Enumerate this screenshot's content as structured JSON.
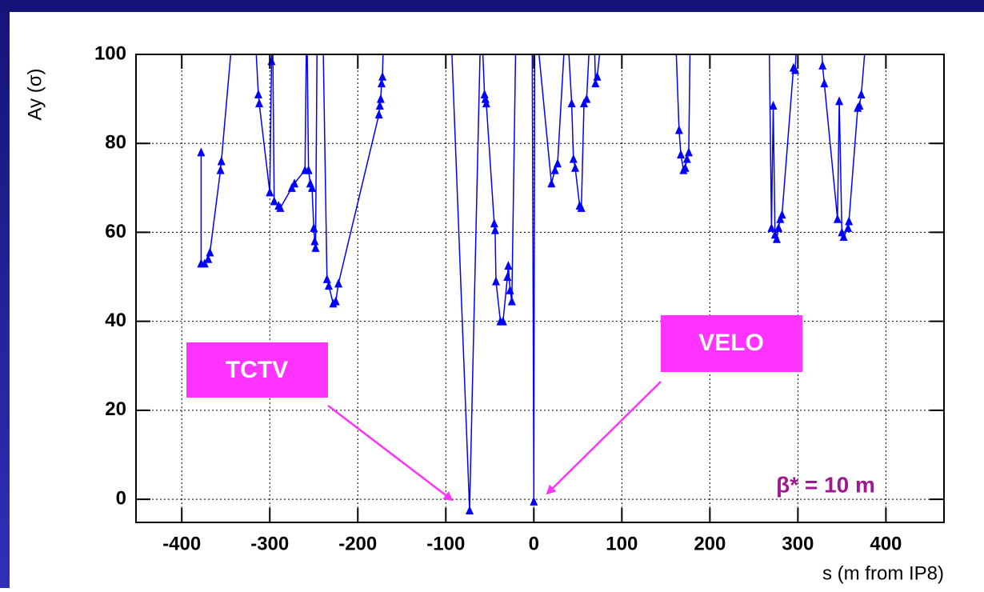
{
  "chart_data": {
    "type": "line",
    "y_label": "Ay (σ)",
    "x_label": "s (m from IP8)",
    "annotations": [
      "TCTV",
      "VELO",
      "β* = 10 m"
    ],
    "color": "#0000ff",
    "marker": "triangle",
    "grid": true,
    "xlim": [
      -452,
      466
    ],
    "ylim": [
      -5.2,
      100
    ],
    "xticks": [
      -400,
      -300,
      -200,
      -100,
      0,
      100,
      200,
      300,
      400
    ],
    "yticks": [
      0,
      20,
      40,
      60,
      80,
      100
    ],
    "x": [
      -378,
      -378,
      -374,
      -370,
      -368,
      -356,
      -355,
      -340,
      -318,
      -313,
      -312,
      -300,
      -298,
      -297,
      -295,
      -290,
      -288,
      -275,
      -272,
      -260,
      -258,
      -256,
      -254,
      -252,
      -250,
      -249,
      -248,
      -246,
      -240,
      -235,
      -233,
      -228,
      -225,
      -222,
      -176,
      -175,
      -174,
      -173,
      -172,
      -170,
      -95,
      -73,
      -60,
      -56,
      -55,
      -54,
      -45,
      -44,
      -43,
      -38,
      -35,
      -30,
      -29,
      -27,
      -25,
      -20,
      -2,
      0,
      1,
      20,
      24,
      27,
      37,
      43,
      45,
      47,
      52,
      54,
      57,
      60,
      65,
      68,
      70,
      72,
      80,
      160,
      165,
      167,
      170,
      172,
      174,
      176,
      178,
      267,
      270,
      272,
      274,
      276,
      278,
      280,
      282,
      295,
      297,
      300,
      325,
      328,
      330,
      345,
      347,
      350,
      352,
      357,
      358,
      368,
      370,
      372,
      380
    ],
    "values": [
      78,
      53,
      53,
      54,
      55.5,
      74,
      76,
      110,
      110,
      91,
      89,
      69,
      98.5,
      110,
      67,
      66,
      65.5,
      70,
      71,
      74,
      110,
      74,
      71,
      70,
      61,
      58,
      56.5,
      110,
      110,
      49.5,
      48,
      44,
      44.5,
      48.5,
      86.5,
      88.5,
      90,
      93.5,
      95,
      110,
      110,
      -2.5,
      110,
      91,
      90,
      89,
      62,
      60.5,
      49,
      40,
      40,
      50,
      52.5,
      47,
      44.5,
      110,
      110,
      -0.5,
      110,
      71,
      74,
      75.5,
      110,
      89,
      76.5,
      74.5,
      66,
      65.5,
      89,
      90,
      110,
      110,
      93.5,
      95,
      110,
      110,
      83,
      77.5,
      74,
      74.5,
      76.5,
      78,
      110,
      110,
      61,
      88.5,
      59.5,
      58.5,
      61,
      63,
      64,
      97,
      96.5,
      110,
      110,
      97.5,
      93.5,
      63,
      89.5,
      60,
      59,
      61,
      62.5,
      88,
      88.5,
      91,
      110
    ]
  }
}
